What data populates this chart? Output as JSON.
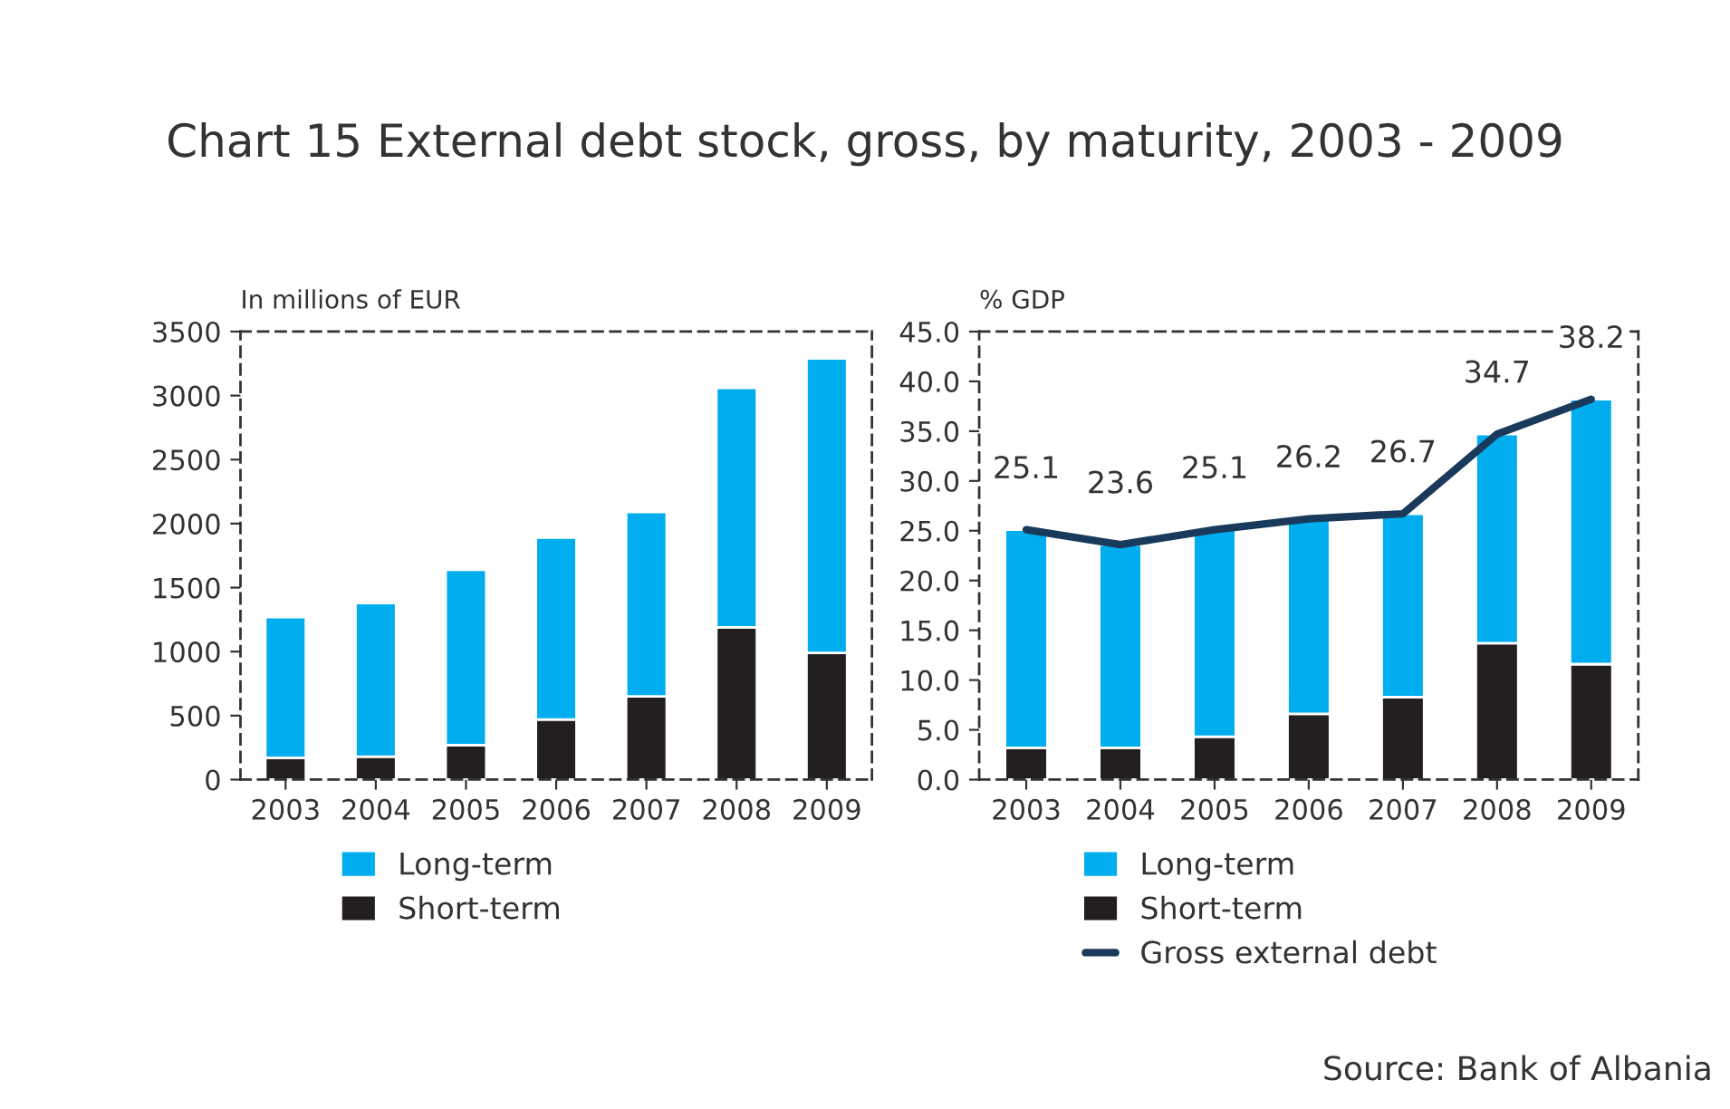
{
  "chart_data": [
    {
      "type": "bar",
      "title": "Chart 15 External debt stock, gross, by maturity, 2003 - 2009",
      "ylabel": "In millions of EUR",
      "stacked": true,
      "categories": [
        "2003",
        "2004",
        "2005",
        "2006",
        "2007",
        "2008",
        "2009"
      ],
      "series": [
        {
          "name": "Short-term",
          "color": "#231f20",
          "values": [
            170,
            180,
            270,
            470,
            650,
            1190,
            990
          ]
        },
        {
          "name": "Long-term",
          "color": "#00aeef",
          "values": [
            1100,
            1200,
            1370,
            1420,
            1440,
            1870,
            2300
          ]
        }
      ],
      "ylim": [
        0,
        3500
      ],
      "yticks": [
        0,
        500,
        1000,
        1500,
        2000,
        2500,
        3000,
        3500
      ],
      "grid": false,
      "legend": "bottom"
    },
    {
      "type": "bar",
      "ylabel": "% GDP",
      "stacked": true,
      "categories": [
        "2003",
        "2004",
        "2005",
        "2006",
        "2007",
        "2008",
        "2009"
      ],
      "series": [
        {
          "name": "Short-term",
          "color": "#231f20",
          "values": [
            3.2,
            3.2,
            4.3,
            6.6,
            8.3,
            13.7,
            11.6
          ]
        },
        {
          "name": "Long-term",
          "color": "#00aeef",
          "values": [
            21.9,
            20.4,
            20.8,
            19.6,
            18.4,
            21.0,
            26.6
          ]
        },
        {
          "name": "Gross external debt",
          "type": "line",
          "color": "#1a3a5c",
          "values": [
            25.1,
            23.6,
            25.1,
            26.2,
            26.7,
            34.7,
            38.2
          ],
          "value_labels": [
            "25.1",
            "23.6",
            "25.1",
            "26.2",
            "26.7",
            "34.7",
            "38.2"
          ]
        }
      ],
      "ylim": [
        0,
        45
      ],
      "yticks": [
        {
          "value": 0,
          "label": "0.0"
        },
        {
          "value": 5,
          "label": "5.0"
        },
        {
          "value": 10,
          "label": "10.0"
        },
        {
          "value": 15,
          "label": "15.0"
        },
        {
          "value": 20,
          "label": "20.0"
        },
        {
          "value": 25,
          "label": "25.0"
        },
        {
          "value": 30,
          "label": "30.0"
        },
        {
          "value": 35,
          "label": "35.0"
        },
        {
          "value": 40,
          "label": "40.0"
        },
        {
          "value": 45,
          "label": "45.0"
        }
      ],
      "grid": false,
      "legend": "bottom",
      "annotations": [
        "Source: Bank of Albania"
      ]
    }
  ]
}
